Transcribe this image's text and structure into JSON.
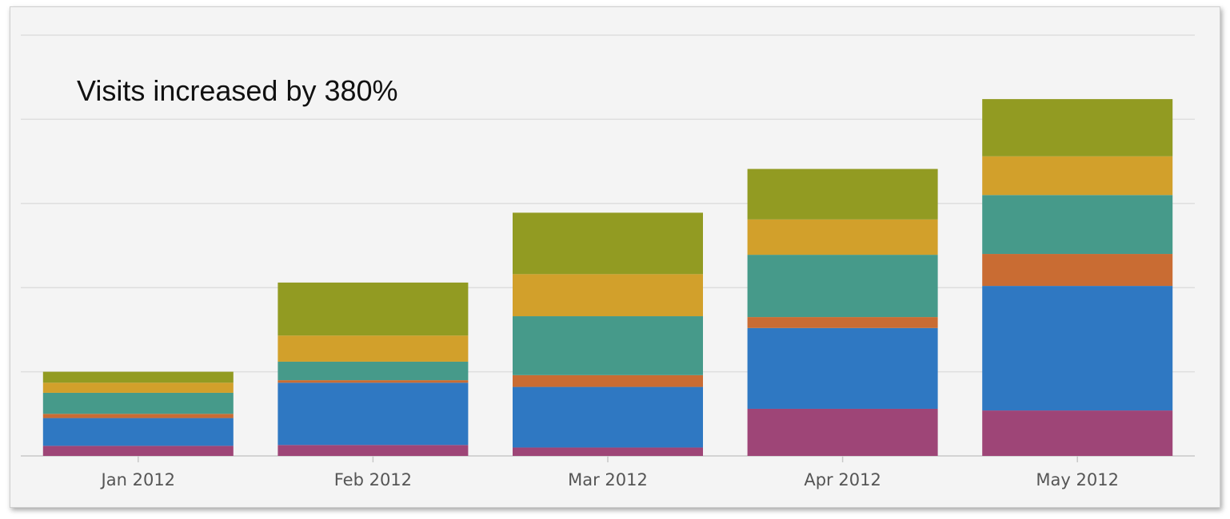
{
  "chart_data": {
    "type": "bar",
    "stacked": true,
    "annotation": "Visits increased by 380%",
    "categories": [
      "Jan 2012",
      "Feb 2012",
      "Mar 2012",
      "Apr 2012",
      "May 2012"
    ],
    "ylim": [
      0,
      5.0
    ],
    "grid": true,
    "legend": "none",
    "series": [
      {
        "color": "#9e4577",
        "values": [
          0.12,
          0.13,
          0.1,
          0.56,
          0.54
        ]
      },
      {
        "color": "#2f78c2",
        "values": [
          0.33,
          0.74,
          0.72,
          0.96,
          1.48
        ]
      },
      {
        "color": "#c96c33",
        "values": [
          0.05,
          0.03,
          0.14,
          0.13,
          0.38
        ]
      },
      {
        "color": "#469a8a",
        "values": [
          0.25,
          0.22,
          0.7,
          0.74,
          0.7
        ]
      },
      {
        "color": "#d2a02b",
        "values": [
          0.12,
          0.31,
          0.5,
          0.42,
          0.46
        ]
      },
      {
        "color": "#929b22",
        "values": [
          0.13,
          0.63,
          0.73,
          0.6,
          0.68
        ]
      }
    ]
  }
}
